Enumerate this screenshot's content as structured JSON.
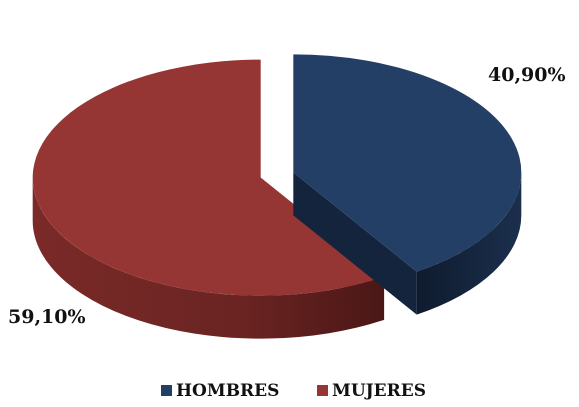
{
  "chart_data": {
    "type": "pie",
    "style": "3d-exploded",
    "categories": [
      "HOMBRES",
      "MUJERES"
    ],
    "values": [
      40.9,
      59.1
    ],
    "data_labels": [
      "40,90%",
      "59,10%"
    ],
    "colors": [
      "#243f66",
      "#963634"
    ],
    "side_colors": [
      "#14243c",
      "#5e1f1e"
    ],
    "legend": {
      "placement": "bottom",
      "entries": [
        "HOMBRES",
        "MUJERES"
      ]
    }
  }
}
